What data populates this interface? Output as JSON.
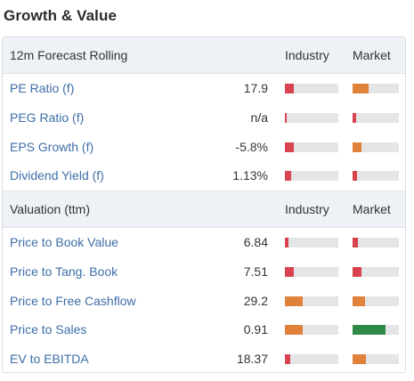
{
  "title": "Growth & Value",
  "colors": {
    "red": "#d9434f",
    "orange": "#e0823a",
    "green": "#2e8b48",
    "track": "#e4e5e7",
    "link": "#3e6ea8"
  },
  "sections": [
    {
      "label": "12m Forecast Rolling",
      "industry_label": "Industry",
      "market_label": "Market",
      "rows": [
        {
          "name": "PE Ratio (f)",
          "value": "17.9",
          "industry": {
            "fraction": 0.17,
            "color": "#d9434f"
          },
          "market": {
            "fraction": 0.35,
            "color": "#e0823a"
          }
        },
        {
          "name": "PEG Ratio (f)",
          "value": "n/a",
          "industry": {
            "fraction": 0.04,
            "color": "#d9434f"
          },
          "market": {
            "fraction": 0.07,
            "color": "#d9434f"
          }
        },
        {
          "name": "EPS Growth (f)",
          "value": "-5.8%",
          "industry": {
            "fraction": 0.17,
            "color": "#d9434f"
          },
          "market": {
            "fraction": 0.2,
            "color": "#e0823a"
          }
        },
        {
          "name": "Dividend Yield (f)",
          "value": "1.13%",
          "industry": {
            "fraction": 0.12,
            "color": "#d9434f"
          },
          "market": {
            "fraction": 0.09,
            "color": "#d9434f"
          }
        }
      ]
    },
    {
      "label": "Valuation (ttm)",
      "industry_label": "Industry",
      "market_label": "Market",
      "rows": [
        {
          "name": "Price to Book Value",
          "value": "6.84",
          "industry": {
            "fraction": 0.07,
            "color": "#d9434f"
          },
          "market": {
            "fraction": 0.12,
            "color": "#d9434f"
          }
        },
        {
          "name": "Price to Tang. Book",
          "value": "7.51",
          "industry": {
            "fraction": 0.17,
            "color": "#d9434f"
          },
          "market": {
            "fraction": 0.19,
            "color": "#d9434f"
          }
        },
        {
          "name": "Price to Free Cashflow",
          "value": "29.2",
          "industry": {
            "fraction": 0.33,
            "color": "#e0823a"
          },
          "market": {
            "fraction": 0.27,
            "color": "#e0823a"
          }
        },
        {
          "name": "Price to Sales",
          "value": "0.91",
          "industry": {
            "fraction": 0.33,
            "color": "#e0823a"
          },
          "market": {
            "fraction": 0.71,
            "color": "#2e8b48"
          }
        },
        {
          "name": "EV to EBITDA",
          "value": "18.37",
          "industry": {
            "fraction": 0.1,
            "color": "#d9434f"
          },
          "market": {
            "fraction": 0.29,
            "color": "#e0823a"
          }
        }
      ]
    }
  ]
}
